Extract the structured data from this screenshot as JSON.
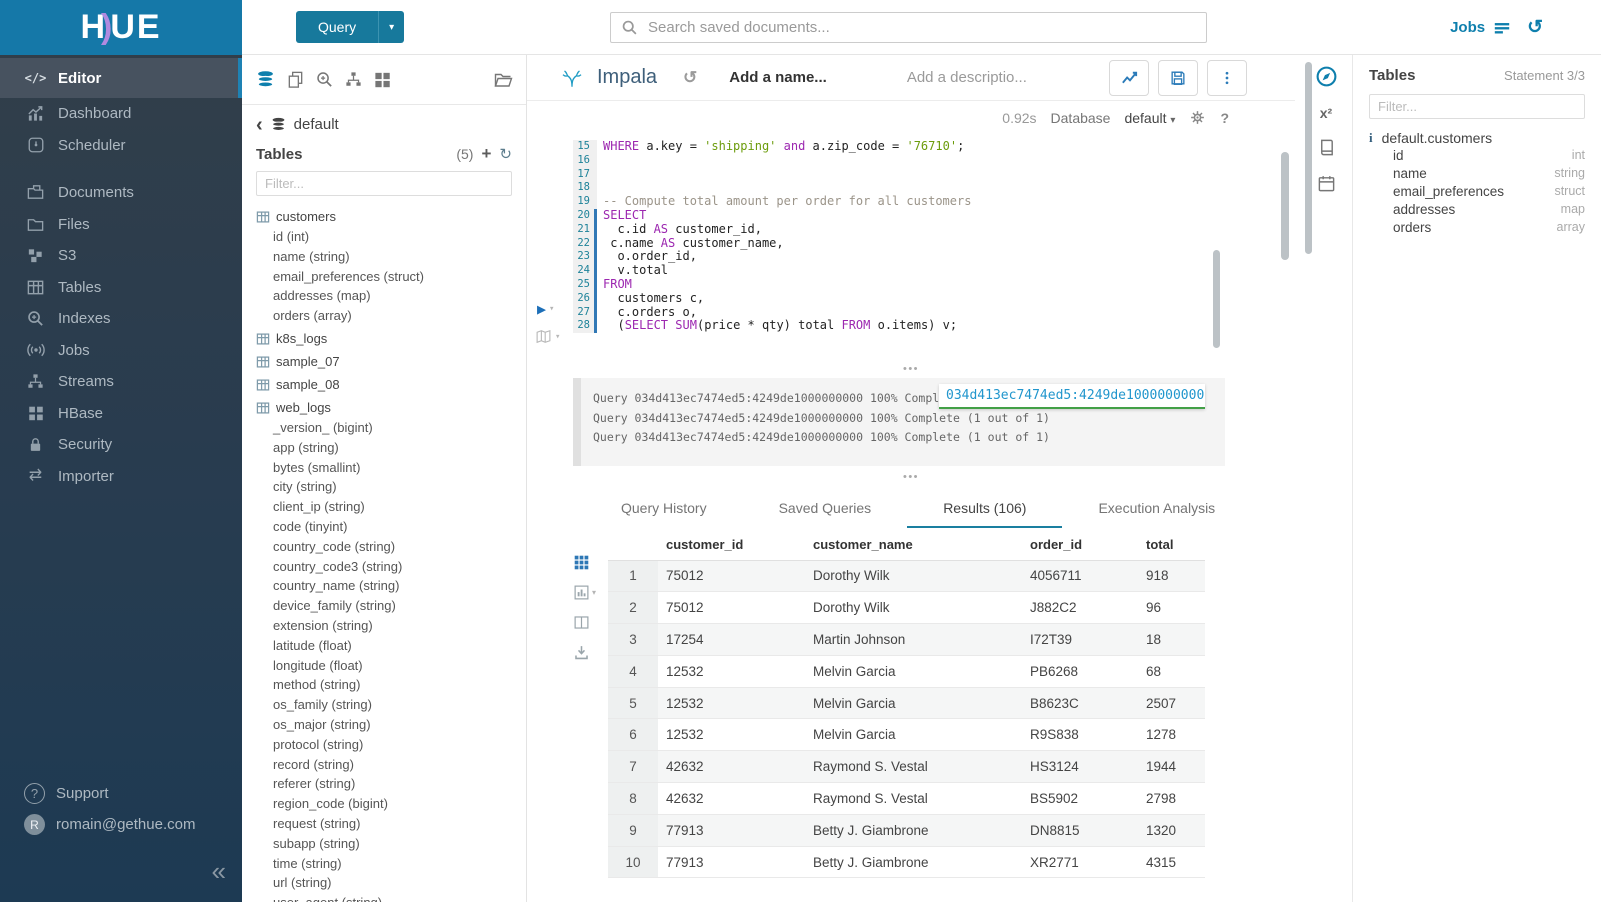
{
  "topbar": {
    "query_label": "Query",
    "search_placeholder": "Search saved documents...",
    "jobs_label": "Jobs"
  },
  "sidebar": {
    "items": [
      {
        "label": "Editor",
        "icon": "code-icon",
        "active": true,
        "gap": false
      },
      {
        "label": "Dashboard",
        "icon": "dashboard-icon",
        "active": false,
        "gap": false
      },
      {
        "label": "Scheduler",
        "icon": "scheduler-icon",
        "active": false,
        "gap": false
      },
      {
        "label": "Documents",
        "icon": "documents-icon",
        "active": false,
        "gap": true
      },
      {
        "label": "Files",
        "icon": "files-icon",
        "active": false,
        "gap": false
      },
      {
        "label": "S3",
        "icon": "s3-icon",
        "active": false,
        "gap": false
      },
      {
        "label": "Tables",
        "icon": "tables-icon",
        "active": false,
        "gap": false
      },
      {
        "label": "Indexes",
        "icon": "indexes-icon",
        "active": false,
        "gap": false
      },
      {
        "label": "Jobs",
        "icon": "jobs-icon",
        "active": false,
        "gap": false
      },
      {
        "label": "Streams",
        "icon": "streams-icon",
        "active": false,
        "gap": false
      },
      {
        "label": "HBase",
        "icon": "hbase-icon",
        "active": false,
        "gap": false
      },
      {
        "label": "Security",
        "icon": "security-icon",
        "active": false,
        "gap": false
      },
      {
        "label": "Importer",
        "icon": "importer-icon",
        "active": false,
        "gap": false
      }
    ],
    "support_label": "Support",
    "user_email": "romain@gethue.com",
    "avatar_initial": "R"
  },
  "db_panel": {
    "database_name": "default",
    "tables_title": "Tables",
    "tables_count": "(5)",
    "filter_placeholder": "Filter...",
    "tree": [
      {
        "table": "customers",
        "columns": [
          "id (int)",
          "name (string)",
          "email_preferences (struct)",
          "addresses (map)",
          "orders (array)"
        ]
      },
      {
        "table": "k8s_logs",
        "columns": []
      },
      {
        "table": "sample_07",
        "columns": []
      },
      {
        "table": "sample_08",
        "columns": []
      },
      {
        "table": "web_logs",
        "columns": [
          "_version_ (bigint)",
          "app (string)",
          "bytes (smallint)",
          "city (string)",
          "client_ip (string)",
          "code (tinyint)",
          "country_code (string)",
          "country_code3 (string)",
          "country_name (string)",
          "device_family (string)",
          "extension (string)",
          "latitude (float)",
          "longitude (float)",
          "method (string)",
          "os_family (string)",
          "os_major (string)",
          "protocol (string)",
          "record (string)",
          "referer (string)",
          "region_code (bigint)",
          "request (string)",
          "subapp (string)",
          "time (string)",
          "url (string)",
          "user_agent (string)"
        ]
      }
    ]
  },
  "editor": {
    "engine_name": "Impala",
    "name_placeholder": "Add a name...",
    "description_placeholder": "Add a descriptio...",
    "duration": "0.92s",
    "database_label": "Database",
    "database_value": "default",
    "code": [
      {
        "n": "15",
        "hl": false,
        "toks": [
          [
            "k",
            "WHERE"
          ],
          [
            "p",
            " a.key = "
          ],
          [
            "s",
            "'shipping'"
          ],
          [
            "p",
            " "
          ],
          [
            "k",
            "and"
          ],
          [
            "p",
            " a.zip_code = "
          ],
          [
            "s",
            "'76710'"
          ],
          [
            "p",
            ";"
          ]
        ]
      },
      {
        "n": "16",
        "hl": false,
        "toks": []
      },
      {
        "n": "17",
        "hl": false,
        "toks": []
      },
      {
        "n": "18",
        "hl": false,
        "toks": []
      },
      {
        "n": "19",
        "hl": false,
        "toks": [
          [
            "c",
            "-- Compute total amount per order for all customers"
          ]
        ]
      },
      {
        "n": "20",
        "hl": true,
        "toks": [
          [
            "k",
            "SELECT"
          ]
        ]
      },
      {
        "n": "21",
        "hl": true,
        "toks": [
          [
            "p",
            "  c.id "
          ],
          [
            "k",
            "AS"
          ],
          [
            "p",
            " customer_id,"
          ]
        ]
      },
      {
        "n": "22",
        "hl": true,
        "toks": [
          [
            "p",
            " c.name "
          ],
          [
            "k",
            "AS"
          ],
          [
            "p",
            " customer_name,"
          ]
        ]
      },
      {
        "n": "23",
        "hl": true,
        "toks": [
          [
            "p",
            "  o.order_id,"
          ]
        ]
      },
      {
        "n": "24",
        "hl": true,
        "toks": [
          [
            "p",
            "  v.total"
          ]
        ]
      },
      {
        "n": "25",
        "hl": true,
        "toks": [
          [
            "k",
            "FROM"
          ]
        ]
      },
      {
        "n": "26",
        "hl": true,
        "toks": [
          [
            "p",
            "  customers c,"
          ]
        ]
      },
      {
        "n": "27",
        "hl": true,
        "toks": [
          [
            "p",
            "  c.orders o,"
          ]
        ]
      },
      {
        "n": "28",
        "hl": true,
        "toks": [
          [
            "p",
            "  ("
          ],
          [
            "k",
            "SELECT"
          ],
          [
            "p",
            " "
          ],
          [
            "k",
            "SUM"
          ],
          [
            "p",
            "(price * qty) total "
          ],
          [
            "k",
            "FROM"
          ],
          [
            "p",
            " o.items) v;"
          ]
        ]
      }
    ],
    "log_lines": [
      "Query 034d413ec7474ed5:4249de1000000000 100% Complete (1 out of 1)",
      "Query 034d413ec7474ed5:4249de1000000000 100% Complete (1 out of 1)",
      "Query 034d413ec7474ed5:4249de1000000000 100% Complete (1 out of 1)"
    ],
    "query_id_tooltip": "034d413ec7474ed5:4249de1000000000"
  },
  "result_tabs": [
    {
      "label": "Query History",
      "active": false
    },
    {
      "label": "Saved Queries",
      "active": false
    },
    {
      "label": "Results (106)",
      "active": true
    },
    {
      "label": "Execution Analysis",
      "active": false
    }
  ],
  "results": {
    "columns": [
      "customer_id",
      "customer_name",
      "order_id",
      "total"
    ],
    "rows": [
      [
        "1",
        "75012",
        "Dorothy Wilk",
        "4056711",
        "918"
      ],
      [
        "2",
        "75012",
        "Dorothy Wilk",
        "J882C2",
        "96"
      ],
      [
        "3",
        "17254",
        "Martin Johnson",
        "I72T39",
        "18"
      ],
      [
        "4",
        "12532",
        "Melvin Garcia",
        "PB6268",
        "68"
      ],
      [
        "5",
        "12532",
        "Melvin Garcia",
        "B8623C",
        "2507"
      ],
      [
        "6",
        "12532",
        "Melvin Garcia",
        "R9S838",
        "1278"
      ],
      [
        "7",
        "42632",
        "Raymond S. Vestal",
        "HS3124",
        "1944"
      ],
      [
        "8",
        "42632",
        "Raymond S. Vestal",
        "BS5902",
        "2798"
      ],
      [
        "9",
        "77913",
        "Betty J. Giambrone",
        "DN8815",
        "1320"
      ],
      [
        "10",
        "77913",
        "Betty J. Giambrone",
        "XR2771",
        "4315"
      ]
    ]
  },
  "right_panel": {
    "title": "Tables",
    "statement_indicator": "Statement 3/3",
    "filter_placeholder": "Filter...",
    "table_name": "default.customers",
    "columns": [
      {
        "name": "id",
        "type": "int"
      },
      {
        "name": "name",
        "type": "string"
      },
      {
        "name": "email_preferences",
        "type": "struct"
      },
      {
        "name": "addresses",
        "type": "map"
      },
      {
        "name": "orders",
        "type": "array"
      }
    ]
  },
  "colors": {
    "brand_cyan": "#1578a8",
    "link_blue": "#0e7fad",
    "keyword_purple": "#9c27b0",
    "string_green": "#6c9c0c",
    "active_tab_underline": "#1a7fa0",
    "tooltip_underline_green": "#43a047"
  }
}
